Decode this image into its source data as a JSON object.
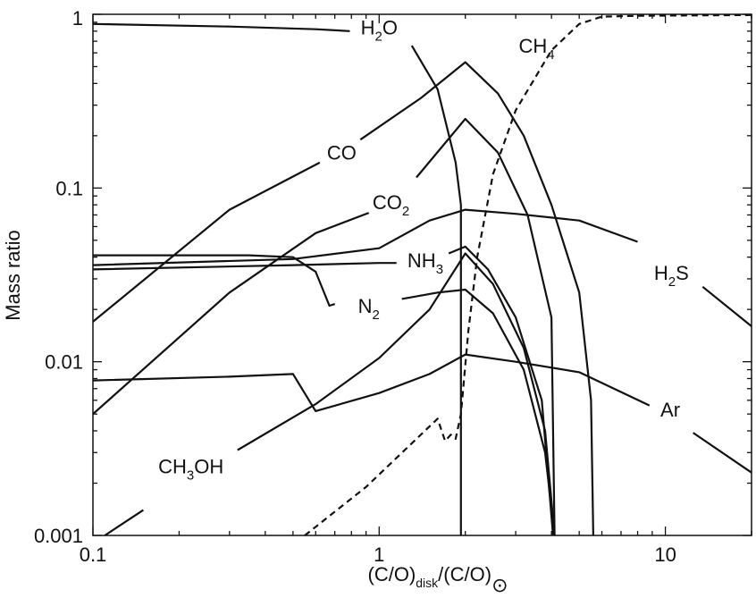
{
  "chart_data": {
    "type": "line",
    "xscale": "log",
    "yscale": "log",
    "xlim": [
      0.1,
      20
    ],
    "ylim": [
      0.001,
      1
    ],
    "grid": false,
    "legend": "none",
    "xlabel": "(C/O)disk/(C/O)⊙",
    "xlabel_parts": {
      "main": "(C/O)",
      "sub1": "disk",
      "mid": "/(C/O)",
      "sub2": "⊙"
    },
    "ylabel": "Mass ratio",
    "x_ticks": [
      0.1,
      1,
      10
    ],
    "x_tick_labels": [
      "0.1",
      "1",
      "10"
    ],
    "y_ticks": [
      0.001,
      0.01,
      0.1,
      1
    ],
    "y_tick_labels": [
      "0.001",
      "0.01",
      "0.1",
      "1"
    ],
    "series": [
      {
        "name": "H2O",
        "label_main": "H",
        "label_sub": "2",
        "label_tail": "O",
        "label_at": [
          1.0,
          0.84
        ],
        "gap": [
          0.79,
          1.3
        ],
        "style": "solid",
        "points": [
          [
            0.1,
            0.88
          ],
          [
            0.3,
            0.85
          ],
          [
            0.6,
            0.82
          ],
          [
            0.79,
            0.8
          ],
          [
            1.3,
            0.66
          ],
          [
            1.6,
            0.37
          ],
          [
            1.85,
            0.14
          ],
          [
            1.93,
            0.08
          ],
          [
            1.93,
            0.001
          ]
        ]
      },
      {
        "name": "CH4",
        "label_main": "CH",
        "label_sub": "4",
        "label_tail": "",
        "label_at": [
          3.55,
          0.66
        ],
        "style": "dashed",
        "points": [
          [
            0.55,
            0.001
          ],
          [
            0.9,
            0.0019
          ],
          [
            1.6,
            0.0047
          ],
          [
            1.7,
            0.0035
          ],
          [
            1.78,
            0.0038
          ],
          [
            1.85,
            0.0036
          ],
          [
            1.93,
            0.005
          ],
          [
            2.05,
            0.015
          ],
          [
            2.2,
            0.04
          ],
          [
            2.5,
            0.12
          ],
          [
            3.0,
            0.28
          ],
          [
            4.0,
            0.62
          ],
          [
            5.0,
            0.88
          ],
          [
            6.0,
            0.97
          ],
          [
            8.0,
            0.98
          ],
          [
            20,
            0.99
          ]
        ]
      },
      {
        "name": "CO",
        "label_main": "CO",
        "label_sub": "",
        "label_tail": "",
        "label_at": [
          0.74,
          0.16
        ],
        "gap": [
          0.62,
          0.86
        ],
        "style": "solid",
        "points": [
          [
            0.1,
            0.017
          ],
          [
            0.3,
            0.075
          ],
          [
            0.62,
            0.14
          ],
          [
            0.86,
            0.19
          ],
          [
            1.4,
            0.33
          ],
          [
            2.0,
            0.53
          ],
          [
            2.6,
            0.35
          ],
          [
            3.2,
            0.2
          ],
          [
            4.0,
            0.08
          ],
          [
            5.0,
            0.025
          ],
          [
            5.5,
            0.006
          ],
          [
            5.6,
            0.001
          ]
        ]
      },
      {
        "name": "CO2",
        "label_main": "CO",
        "label_sub": "2",
        "label_tail": "",
        "label_at": [
          1.1,
          0.083
        ],
        "gap": [
          0.92,
          1.35
        ],
        "style": "solid",
        "points": [
          [
            0.1,
            0.005
          ],
          [
            0.3,
            0.025
          ],
          [
            0.6,
            0.055
          ],
          [
            0.92,
            0.072
          ],
          [
            1.35,
            0.115
          ],
          [
            2.0,
            0.25
          ],
          [
            2.6,
            0.16
          ],
          [
            3.3,
            0.07
          ],
          [
            4.0,
            0.018
          ],
          [
            4.1,
            0.001
          ]
        ]
      },
      {
        "name": "H2S",
        "label_main": "H",
        "label_sub": "2",
        "label_tail": "S",
        "label_at": [
          10.5,
          0.0325
        ],
        "gap": [
          8.0,
          13.5
        ],
        "style": "solid",
        "points": [
          [
            0.1,
            0.036
          ],
          [
            0.5,
            0.039
          ],
          [
            1.0,
            0.045
          ],
          [
            1.5,
            0.065
          ],
          [
            2.0,
            0.075
          ],
          [
            3.0,
            0.071
          ],
          [
            5.0,
            0.065
          ],
          [
            8.0,
            0.049
          ],
          [
            13.5,
            0.027
          ],
          [
            20,
            0.016
          ]
        ]
      },
      {
        "name": "NH3",
        "label_main": "NH",
        "label_sub": "3",
        "label_tail": "",
        "label_at": [
          1.45,
          0.0385
        ],
        "gap": [
          1.15,
          1.75
        ],
        "style": "solid",
        "points": [
          [
            0.1,
            0.034
          ],
          [
            0.5,
            0.036
          ],
          [
            1.0,
            0.037
          ],
          [
            1.15,
            0.037
          ],
          [
            1.75,
            0.042
          ],
          [
            2.0,
            0.046
          ],
          [
            2.4,
            0.034
          ],
          [
            3.0,
            0.018
          ],
          [
            3.7,
            0.006
          ],
          [
            4.05,
            0.001
          ]
        ]
      },
      {
        "name": "N2",
        "label_main": "N",
        "label_sub": "2",
        "label_tail": "",
        "label_at": [
          0.92,
          0.021
        ],
        "gap": [
          0.7,
          1.2
        ],
        "style": "solid",
        "points": [
          [
            0.1,
            0.041
          ],
          [
            0.35,
            0.041
          ],
          [
            0.5,
            0.04
          ],
          [
            0.6,
            0.033
          ],
          [
            0.67,
            0.021
          ],
          [
            0.7,
            0.0215
          ],
          [
            1.2,
            0.023
          ],
          [
            1.6,
            0.025
          ],
          [
            2.0,
            0.026
          ],
          [
            2.5,
            0.019
          ],
          [
            3.2,
            0.009
          ],
          [
            3.8,
            0.003
          ],
          [
            4.1,
            0.001
          ]
        ]
      },
      {
        "name": "Ar",
        "label_main": "Ar",
        "label_sub": "",
        "label_tail": "",
        "label_at": [
          10.4,
          0.0053
        ],
        "gap": [
          8.8,
          12.5
        ],
        "style": "solid",
        "points": [
          [
            0.1,
            0.0078
          ],
          [
            0.3,
            0.0082
          ],
          [
            0.5,
            0.0085
          ],
          [
            0.6,
            0.0052
          ],
          [
            1.0,
            0.0066
          ],
          [
            1.5,
            0.0085
          ],
          [
            2.0,
            0.011
          ],
          [
            3.0,
            0.01
          ],
          [
            5.0,
            0.0087
          ],
          [
            8.8,
            0.0056
          ],
          [
            12.5,
            0.0039
          ],
          [
            20,
            0.0023
          ]
        ]
      },
      {
        "name": "CH3OH",
        "label_main": "CH",
        "label_sub": "3",
        "label_tail": "OH",
        "label_at": [
          0.22,
          0.0025
        ],
        "gap": [
          0.15,
          0.32
        ],
        "style": "solid",
        "points": [
          [
            0.11,
            0.001
          ],
          [
            0.15,
            0.0014
          ],
          [
            0.32,
            0.0031
          ],
          [
            0.6,
            0.0057
          ],
          [
            1.0,
            0.0105
          ],
          [
            1.5,
            0.02
          ],
          [
            2.0,
            0.042
          ],
          [
            2.5,
            0.028
          ],
          [
            3.2,
            0.012
          ],
          [
            3.8,
            0.004
          ],
          [
            4.1,
            0.001
          ]
        ]
      }
    ]
  }
}
